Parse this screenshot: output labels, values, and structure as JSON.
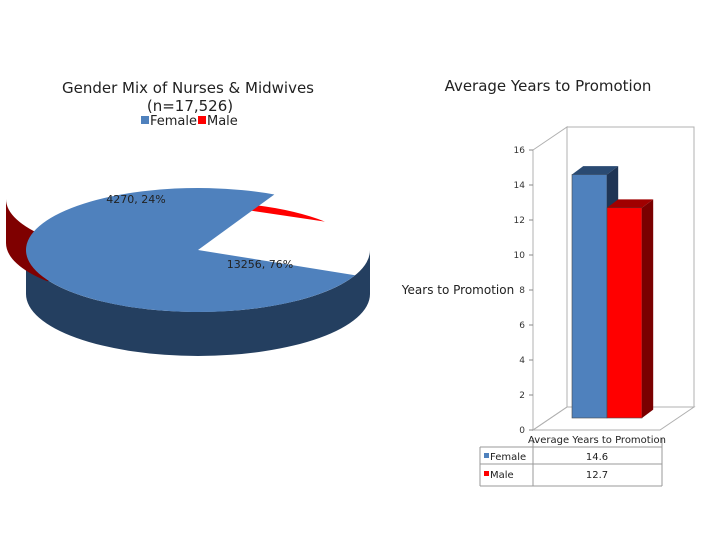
{
  "chart_data": [
    {
      "type": "pie",
      "title": "Gender Mix of Nurses & Midwives (n=17,526)",
      "title_lines": [
        "Gender Mix of Nurses & Midwives",
        "(n=17,526)"
      ],
      "legend_position": "top",
      "slices": [
        {
          "name": "Female",
          "value": 13256,
          "percent": 76,
          "label": "13256, 76%",
          "color": "#4f81bd",
          "side_color": "#243f60"
        },
        {
          "name": "Male",
          "value": 4270,
          "percent": 24,
          "label": "4270, 24%",
          "color": "#ff0000",
          "side_color": "#7f0000"
        }
      ]
    },
    {
      "type": "bar",
      "title": "Average Years to Promotion",
      "ylabel": "Years to Promotion",
      "categories": [
        "Average Years to Promotion"
      ],
      "ylim": [
        0,
        16
      ],
      "yticks": [
        0,
        2,
        4,
        6,
        8,
        10,
        12,
        14,
        16
      ],
      "grid": false,
      "series": [
        {
          "name": "Female",
          "values": [
            14.6
          ],
          "color": "#4f81bd"
        },
        {
          "name": "Male",
          "values": [
            12.7
          ],
          "color": "#ff0000"
        }
      ],
      "data_table": {
        "header": "Average Years to Promotion",
        "rows": [
          {
            "name": "Female",
            "value": "14.6"
          },
          {
            "name": "Male",
            "value": "12.7"
          }
        ]
      }
    }
  ]
}
